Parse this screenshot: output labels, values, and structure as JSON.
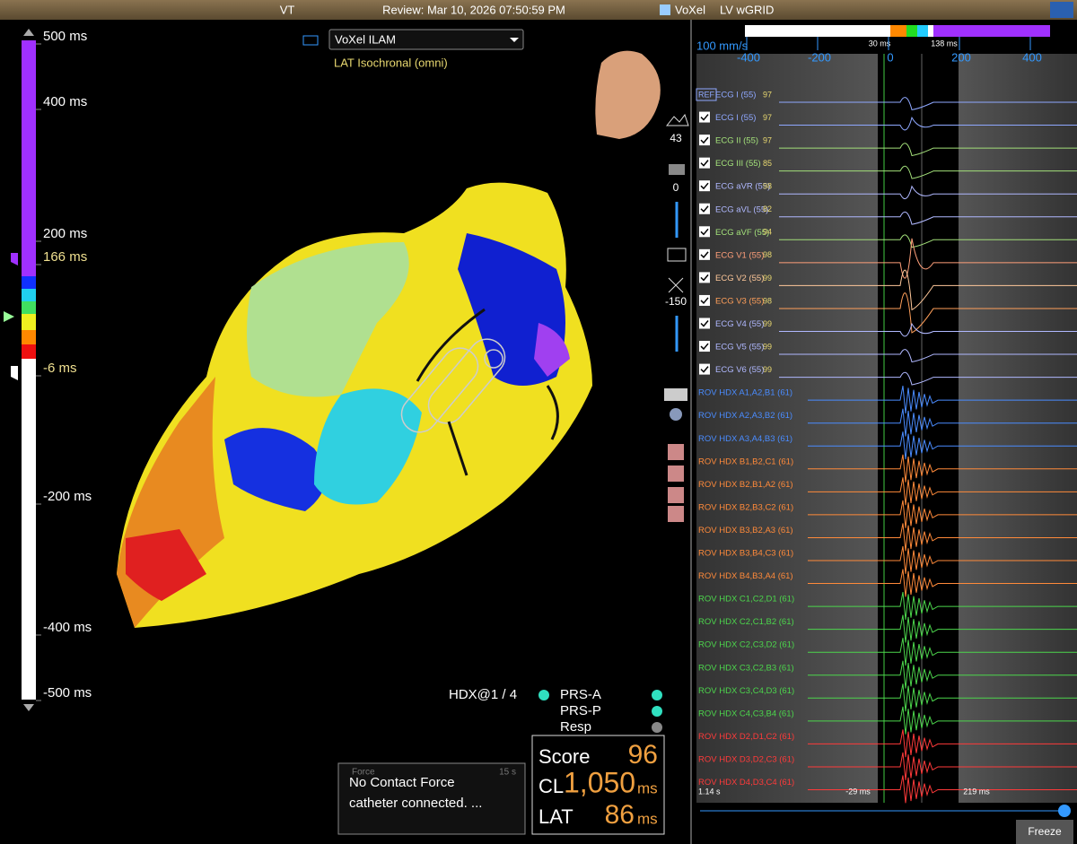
{
  "header": {
    "case": "VT",
    "review": "Review: Mar 10, 2026 07:50:59 PM",
    "app": "VoXel",
    "map": "LV wGRID"
  },
  "scale": {
    "labels": [
      "500 ms",
      "400 ms",
      "200 ms",
      "166 ms",
      "-6 ms",
      "-200 ms",
      "-400 ms",
      "-500 ms"
    ]
  },
  "map": {
    "dropdown": "VoXel ILAM",
    "mode": "LAT Isochronal (omni)"
  },
  "toolbar": {
    "values": [
      "43",
      "0",
      "-150"
    ]
  },
  "timeline": {
    "speed": "100 mm/s",
    "xticks": [
      -400,
      -200,
      0,
      200,
      400
    ],
    "markers": [
      "30 ms",
      "138 ms"
    ]
  },
  "channels": [
    {
      "name": "ECG I (55)",
      "value": "97",
      "color": "#8fa8ff",
      "tag": "REF"
    },
    {
      "name": "ECG I (55)",
      "value": "97",
      "color": "#8fa8ff"
    },
    {
      "name": "ECG II (55)",
      "value": "97",
      "color": "#a3e07a"
    },
    {
      "name": "ECG III (55)",
      "value": "85",
      "color": "#a3e07a"
    },
    {
      "name": "ECG aVR (55)",
      "value": "98",
      "color": "#b0b8ff"
    },
    {
      "name": "ECG aVL (55)",
      "value": "82",
      "color": "#b0b8ff"
    },
    {
      "name": "ECG aVF (55)",
      "value": "94",
      "color": "#a3e07a"
    },
    {
      "name": "ECG V1 (55)",
      "value": "98",
      "color": "#ff9f7a"
    },
    {
      "name": "ECG V2 (55)",
      "value": "99",
      "color": "#ffc89a"
    },
    {
      "name": "ECG V3 (55)",
      "value": "98",
      "color": "#ff9f5a"
    },
    {
      "name": "ECG V4 (55)",
      "value": "99",
      "color": "#b0b8ff"
    },
    {
      "name": "ECG V5 (55)",
      "value": "99",
      "color": "#b0b8ff"
    },
    {
      "name": "ECG V6 (55)",
      "value": "99",
      "color": "#b0b8ff"
    },
    {
      "name": "ROV HDX  A1,A2,B1 (61)",
      "color": "#4a8cff"
    },
    {
      "name": "ROV HDX  A2,A3,B2 (61)",
      "color": "#4a8cff"
    },
    {
      "name": "ROV HDX  A3,A4,B3 (61)",
      "color": "#4a8cff"
    },
    {
      "name": "ROV HDX  B1,B2,C1 (61)",
      "color": "#ff8a3a"
    },
    {
      "name": "ROV HDX  B2,B1,A2 (61)",
      "color": "#ff8a3a"
    },
    {
      "name": "ROV HDX  B2,B3,C2 (61)",
      "color": "#ff8a3a"
    },
    {
      "name": "ROV HDX  B3,B2,A3 (61)",
      "color": "#ff8a3a"
    },
    {
      "name": "ROV HDX  B3,B4,C3 (61)",
      "color": "#ff8a3a"
    },
    {
      "name": "ROV HDX  B4,B3,A4 (61)",
      "color": "#ff8a3a"
    },
    {
      "name": "ROV HDX  C1,C2,D1 (61)",
      "color": "#4cd64c"
    },
    {
      "name": "ROV HDX  C2,C1,B2 (61)",
      "color": "#4cd64c"
    },
    {
      "name": "ROV HDX  C2,C3,D2 (61)",
      "color": "#4cd64c"
    },
    {
      "name": "ROV HDX  C3,C2,B3 (61)",
      "color": "#4cd64c"
    },
    {
      "name": "ROV HDX  C3,C4,D3 (61)",
      "color": "#4cd64c"
    },
    {
      "name": "ROV HDX  C4,C3,B4 (61)",
      "color": "#4cd64c"
    },
    {
      "name": "ROV HDX  D2,D1,C2 (61)",
      "color": "#ff3a3a"
    },
    {
      "name": "ROV HDX  D3,D2,C3 (61)",
      "color": "#ff3a3a"
    },
    {
      "name": "ROV HDX  D4,D3,C4 (61)",
      "color": "#ff3a3a"
    }
  ],
  "status": {
    "catheter": "HDX@1 / 4",
    "items": [
      "PRS-A",
      "PRS-P",
      "Resp"
    ]
  },
  "force": {
    "title": "Force",
    "time": "15 s",
    "line1": "No Contact Force",
    "line2": "catheter connected. ..."
  },
  "score": {
    "score_label": "Score",
    "score": "96",
    "cl_label": "CL",
    "cl": "1,050",
    "cl_unit": "ms",
    "lat_label": "LAT",
    "lat": "86",
    "lat_unit": "ms"
  },
  "footer": {
    "start": "1.14 s",
    "left": "-29 ms",
    "right": "219 ms",
    "button": "Freeze"
  }
}
